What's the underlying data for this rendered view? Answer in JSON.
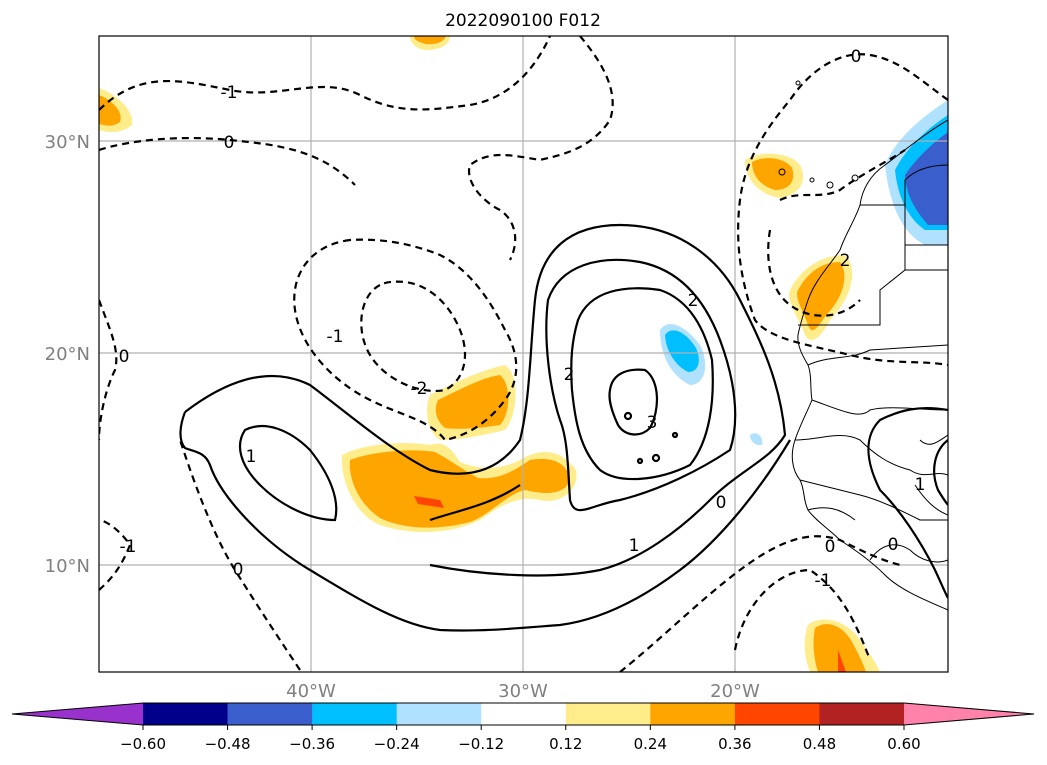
{
  "title": "2022090100 F012",
  "lat_labels": [
    "30°N",
    "20°N",
    "10°N"
  ],
  "lon_labels": [
    "40°W",
    "30°W",
    "20°W"
  ],
  "contour_labels": {
    "nw_minus1": "-1",
    "nw_zero": "0",
    "west_zero": "0",
    "sw_minus1": "-1",
    "s_zero": "0",
    "cyc_minus1": "-1",
    "cyc_minus2": "-2",
    "high_2a": "2",
    "high_2b": "2",
    "high_3": "3",
    "high_1_west": "1",
    "high_1_south": "1",
    "high_0": "0",
    "ne_zero": "0",
    "ne_2": "2",
    "africa_1": "1",
    "africa_0": "0",
    "africa_0b": "0",
    "se_minus1": "-1"
  },
  "colorbar": {
    "ticks": [
      "−0.60",
      "−0.48",
      "−0.36",
      "−0.24",
      "−0.12",
      "0.12",
      "0.24",
      "0.36",
      "0.48",
      "0.60"
    ],
    "colors": [
      "#9932cc",
      "#00008b",
      "#3a5fcd",
      "#00bfff",
      "#b0e2ff",
      "#ffffff",
      "#ffec8b",
      "#ffa500",
      "#ff4500",
      "#b22222",
      "#ff82ab",
      "#ff82ab"
    ]
  }
}
